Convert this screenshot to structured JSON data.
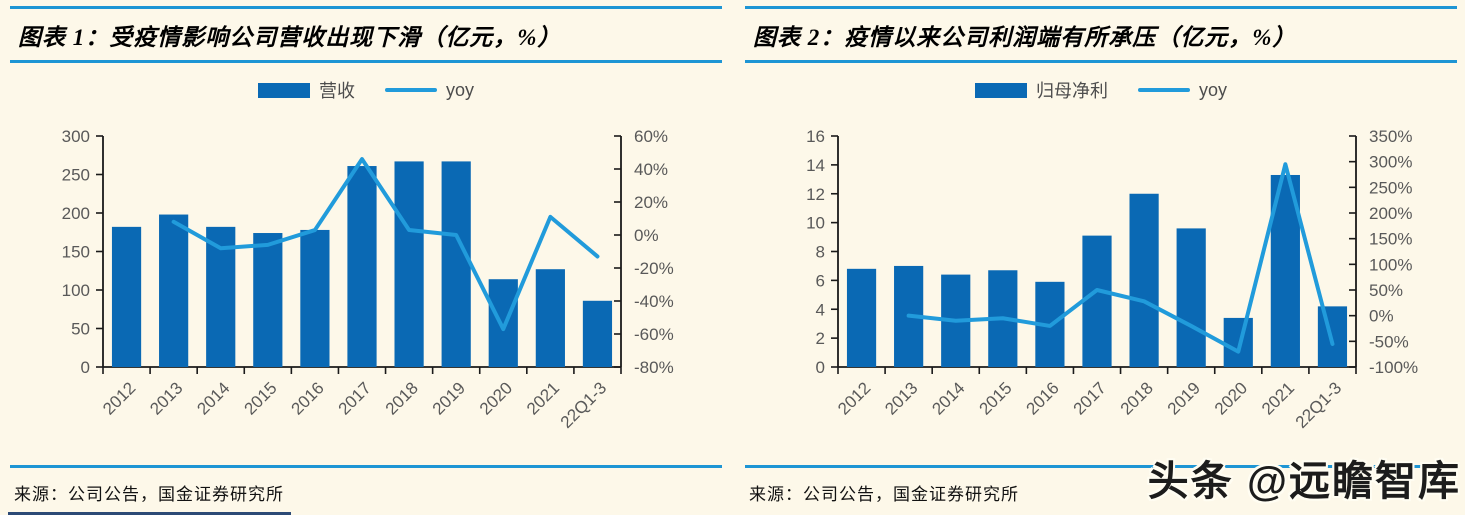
{
  "watermark": {
    "text": "头条 @远瞻智库"
  },
  "colors": {
    "background": "#fdf8e9",
    "rule": "#1e95d4",
    "bar": "#0a69b4",
    "line": "#219bdb",
    "axis": "#1a1a1a",
    "tick_label": "#595959"
  },
  "panels": [
    {
      "title": "图表 1：受疫情影响公司营收出现下滑（亿元，%）",
      "source": "来源：公司公告，国金证券研究所",
      "legend": [
        {
          "label": "营收",
          "marker": "bar"
        },
        {
          "label": "yoy",
          "marker": "line"
        }
      ]
    },
    {
      "title": "图表 2：疫情以来公司利润端有所承压（亿元，%）",
      "source": "来源：公司公告，国金证券研究所",
      "legend": [
        {
          "label": "归母净利",
          "marker": "bar"
        },
        {
          "label": "yoy",
          "marker": "line"
        }
      ]
    }
  ],
  "chart_data": [
    {
      "type": "bar",
      "title": "受疫情影响公司营收出现下滑（亿元，%）",
      "categories": [
        "2012",
        "2013",
        "2014",
        "2015",
        "2016",
        "2017",
        "2018",
        "2019",
        "2020",
        "2021",
        "22Q1-3"
      ],
      "series": [
        {
          "name": "营收",
          "type": "bar",
          "axis": "left",
          "values": [
            182,
            198,
            182,
            174,
            178,
            261,
            267,
            267,
            114,
            127,
            86
          ]
        },
        {
          "name": "yoy",
          "type": "line",
          "axis": "right",
          "values": [
            null,
            8,
            -8,
            -6,
            3,
            46,
            3,
            0,
            -57,
            11,
            -13
          ]
        }
      ],
      "left_axis": {
        "min": 0,
        "max": 300,
        "step": 50,
        "suffix": ""
      },
      "right_axis": {
        "min": -80,
        "max": 60,
        "step": 20,
        "suffix": "%"
      },
      "grid": false,
      "legend_position": "top"
    },
    {
      "type": "bar",
      "title": "疫情以来公司利润端有所承压（亿元，%）",
      "categories": [
        "2012",
        "2013",
        "2014",
        "2015",
        "2016",
        "2017",
        "2018",
        "2019",
        "2020",
        "2021",
        "22Q1-3"
      ],
      "series": [
        {
          "name": "归母净利",
          "type": "bar",
          "axis": "left",
          "values": [
            6.8,
            7.0,
            6.4,
            6.7,
            5.9,
            9.1,
            12.0,
            9.6,
            3.4,
            13.3,
            4.2
          ]
        },
        {
          "name": "yoy",
          "type": "line",
          "axis": "right",
          "values": [
            null,
            0,
            -10,
            -5,
            -20,
            50,
            28,
            -20,
            -70,
            295,
            -55
          ]
        }
      ],
      "left_axis": {
        "min": 0,
        "max": 16,
        "step": 2,
        "suffix": ""
      },
      "right_axis": {
        "min": -100,
        "max": 350,
        "step": 50,
        "suffix": "%"
      },
      "grid": false,
      "legend_position": "top"
    }
  ]
}
